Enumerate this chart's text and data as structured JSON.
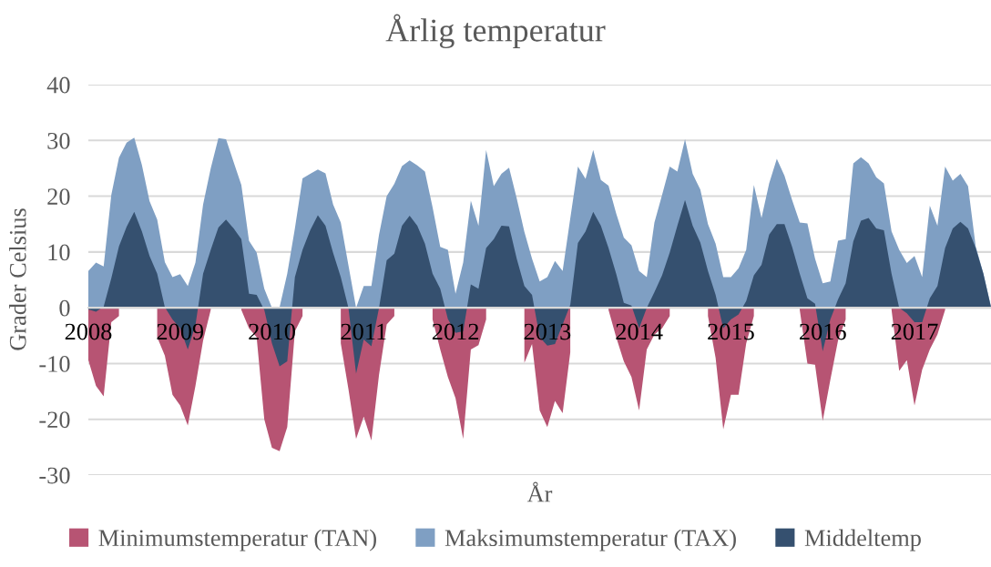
{
  "chart_data": {
    "type": "area",
    "title": "Årlig temperatur",
    "xlabel": "År",
    "ylabel": "Grader Celsius",
    "categories": [
      "2008",
      null,
      null,
      null,
      null,
      null,
      null,
      null,
      null,
      null,
      null,
      null,
      "2009",
      null,
      null,
      null,
      null,
      null,
      null,
      null,
      null,
      null,
      null,
      null,
      "2010",
      null,
      null,
      null,
      null,
      null,
      null,
      null,
      null,
      null,
      null,
      null,
      "2011",
      null,
      null,
      null,
      null,
      null,
      null,
      null,
      null,
      null,
      null,
      null,
      "2012",
      null,
      null,
      null,
      null,
      null,
      null,
      null,
      null,
      null,
      null,
      null,
      "2013",
      null,
      null,
      null,
      null,
      null,
      null,
      null,
      null,
      null,
      null,
      null,
      "2014",
      null,
      null,
      null,
      null,
      null,
      null,
      null,
      null,
      null,
      null,
      null,
      "2015",
      null,
      null,
      null,
      null,
      null,
      null,
      null,
      null,
      null,
      null,
      null,
      "2016",
      null,
      null,
      null,
      null,
      null,
      null,
      null,
      null,
      null,
      null,
      null,
      "2017",
      null,
      null,
      null,
      null,
      null,
      null,
      null,
      null,
      null,
      null
    ],
    "series": [
      {
        "name": "Minimumstemperatur (TAN)",
        "color": "#b75473",
        "values": [
          -9.4,
          -14.0,
          -15.9,
          -2.6,
          -1.5,
          null,
          null,
          null,
          null,
          -5.3,
          -8.6,
          -15.6,
          -17.5,
          -21.1,
          -14.0,
          -5.9,
          -0.4,
          null,
          null,
          null,
          -0.4,
          -3.7,
          -5.3,
          -20.0,
          -25.1,
          -25.7,
          -21.4,
          -4.2,
          -1.5,
          null,
          null,
          null,
          null,
          -6.4,
          -14.6,
          -23.5,
          -19.5,
          -23.8,
          -12.0,
          -3.0,
          -1.5,
          null,
          null,
          null,
          null,
          -2.1,
          -7.5,
          -12.4,
          -16.2,
          -23.5,
          -7.5,
          -6.7,
          -2.1,
          null,
          null,
          null,
          null,
          -9.9,
          -6.5,
          -18.4,
          -21.4,
          -16.7,
          -18.9,
          -8.0,
          null,
          null,
          null,
          null,
          -0.4,
          -5.3,
          -9.6,
          -12.4,
          -18.4,
          -7.5,
          -4.8,
          -3.7,
          -1.5,
          null,
          null,
          null,
          null,
          -1.5,
          -9.0,
          -21.8,
          -15.6,
          -15.6,
          -6.4,
          -1.5,
          null,
          null,
          null,
          null,
          null,
          -0.4,
          -10.0,
          -10.2,
          -20.3,
          -12.9,
          -5.9,
          -2.1,
          null,
          null,
          null,
          null,
          null,
          -0.4,
          -11.3,
          -9.4,
          -17.5,
          -11.1,
          -7.5,
          -4.8,
          -0.4,
          null,
          null,
          null,
          null,
          null,
          null
        ]
      },
      {
        "name": "Maksimumstemperatur (TAX)",
        "color": "#7f9fc3",
        "values": [
          6.6,
          8.1,
          7.4,
          20.2,
          26.9,
          29.6,
          30.5,
          25.6,
          19.1,
          15.8,
          8.2,
          5.5,
          6.0,
          3.9,
          8.1,
          18.5,
          25.0,
          30.4,
          30.2,
          26.1,
          22.0,
          12.0,
          9.9,
          3.4,
          0,
          0.1,
          6.1,
          14.2,
          23.2,
          24.0,
          24.8,
          24.1,
          18.5,
          15.3,
          7.6,
          0,
          3.9,
          3.9,
          13.1,
          20.0,
          22.2,
          25.4,
          26.4,
          25.5,
          24.4,
          18.0,
          10.9,
          10.4,
          2.5,
          8.1,
          19.2,
          14.7,
          28.3,
          21.8,
          24.0,
          25.1,
          19.6,
          13.6,
          8.8,
          4.7,
          5.5,
          8.4,
          6.6,
          16.0,
          25.3,
          23.1,
          28.3,
          22.9,
          21.9,
          16.9,
          12.6,
          11.2,
          6.6,
          5.5,
          15.3,
          20.2,
          25.3,
          24.4,
          30.2,
          24.0,
          21.2,
          15.0,
          11.5,
          5.5,
          5.5,
          7.1,
          10.4,
          22.0,
          16.1,
          22.3,
          26.7,
          23.7,
          19.3,
          15.3,
          15.1,
          8.8,
          4.4,
          4.7,
          12.0,
          12.3,
          25.9,
          27.0,
          25.9,
          23.4,
          22.3,
          13.7,
          10.4,
          8.0,
          9.3,
          5.5,
          18.3,
          14.7,
          25.3,
          22.8,
          24.0,
          21.8,
          11.0,
          6.2,
          0.2
        ]
      },
      {
        "name": "Middeltemp",
        "color": "#35506f",
        "values": [
          -0.3,
          -0.7,
          0.2,
          5.3,
          11.0,
          14.5,
          17.2,
          13.7,
          9.3,
          6.1,
          0.1,
          -2.1,
          -3.7,
          -7.5,
          -3.1,
          6.1,
          10.4,
          14.4,
          15.8,
          14.2,
          12.3,
          2.5,
          2.3,
          -0.4,
          -6.4,
          -10.5,
          -9.6,
          5.5,
          10.4,
          13.9,
          16.6,
          14.7,
          9.8,
          5.5,
          0,
          -11.8,
          -5.7,
          -6.9,
          0,
          8.5,
          9.7,
          14.7,
          16.5,
          14.7,
          11.5,
          6.1,
          3.4,
          -2.0,
          -4.5,
          -4.2,
          4.2,
          3.4,
          10.7,
          12.3,
          14.7,
          14.6,
          8.8,
          3.9,
          2.3,
          -5.3,
          -6.8,
          -6.5,
          -3.0,
          0.5,
          11.6,
          13.7,
          17.2,
          14.7,
          10.7,
          6.1,
          0.9,
          0.4,
          -3.7,
          0,
          2.8,
          5.8,
          9.9,
          14.7,
          19.3,
          14.7,
          11.7,
          6.6,
          2.3,
          -3.7,
          -2.1,
          -1.2,
          1.2,
          5.8,
          7.7,
          13.1,
          15.0,
          15.0,
          10.9,
          6.1,
          1.7,
          0.7,
          -7.8,
          -2.1,
          1.5,
          4.4,
          11.9,
          15.6,
          16.1,
          14.2,
          13.9,
          6.1,
          0,
          -1.0,
          -2.6,
          -2.6,
          1.7,
          3.9,
          10.7,
          14.2,
          15.4,
          14.2,
          10.7,
          6.1,
          0.1
        ]
      }
    ],
    "ylim": [
      -30,
      40
    ],
    "yticks": [
      -30,
      -20,
      -10,
      0,
      10,
      20,
      30,
      40
    ],
    "grid": "y",
    "legend": "bottom"
  }
}
